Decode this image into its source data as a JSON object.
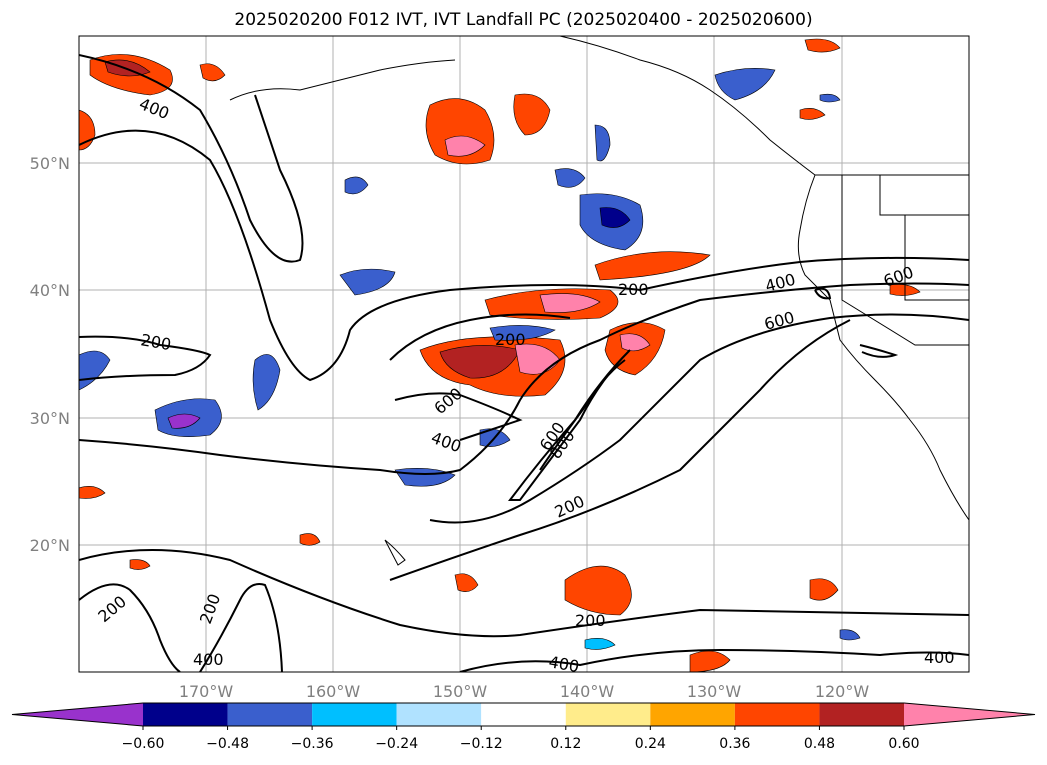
{
  "title": "2025020200 F012 IVT, IVT Landfall PC (2025020400 - 2025020600)",
  "latitude_labels": [
    "50°N",
    "40°N",
    "30°N",
    "20°N"
  ],
  "longitude_labels": [
    "170°W",
    "160°W",
    "150°W",
    "140°W",
    "130°W",
    "120°W"
  ],
  "ivt_contour_labels": [
    "400",
    "200",
    "200",
    "200",
    "600",
    "400",
    "600",
    "800",
    "200",
    "400",
    "600",
    "600",
    "200",
    "200",
    "400",
    "200",
    "400",
    "400"
  ],
  "colorbar": {
    "ticks": [
      "−0.60",
      "−0.48",
      "−0.36",
      "−0.24",
      "−0.12",
      "0.12",
      "0.24",
      "0.36",
      "0.48",
      "0.60"
    ],
    "colors": [
      "#9932cc",
      "#00008b",
      "#3a5fcd",
      "#00bfff",
      "#b0e2ff",
      "#ffffff",
      "#ffec8b",
      "#ffa500",
      "#ff4500",
      "#b22222",
      "#ff82ab"
    ]
  },
  "colors": {
    "grid": "#b0b0b0",
    "frame": "#000000",
    "coast": "#000000",
    "axis_label": "#808080"
  }
}
